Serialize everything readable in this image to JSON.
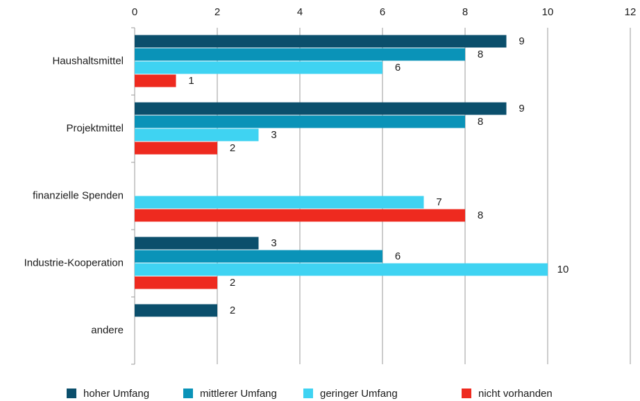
{
  "chart_data": {
    "type": "bar",
    "orientation": "horizontal",
    "categories": [
      "Haushaltsmittel",
      "Projektmittel",
      "finanzielle Spenden",
      "Industrie-Kooperation",
      "andere"
    ],
    "series": [
      {
        "name": "hoher Umfang",
        "color": "#0b4f6c",
        "values": [
          9,
          9,
          null,
          3,
          2
        ]
      },
      {
        "name": "mittlerer Umfang",
        "color": "#0a93b8",
        "values": [
          8,
          8,
          null,
          6,
          null
        ]
      },
      {
        "name": "geringer Umfang",
        "color": "#3fd3f2",
        "values": [
          6,
          3,
          7,
          10,
          null
        ]
      },
      {
        "name": "nicht vorhanden",
        "color": "#ee2a1f",
        "values": [
          1,
          2,
          8,
          2,
          null
        ]
      }
    ],
    "xlim": [
      0,
      12
    ],
    "xticks": [
      0,
      2,
      4,
      6,
      8,
      10,
      12
    ],
    "grid": true,
    "legend": "bottom"
  }
}
